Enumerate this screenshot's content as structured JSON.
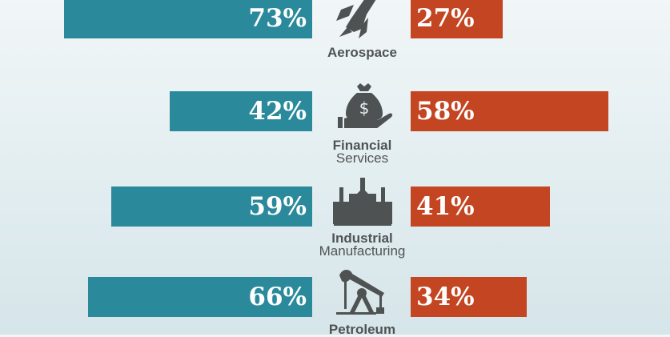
{
  "chart_data": {
    "type": "bar",
    "orientation": "horizontal-diverging",
    "categories": [
      {
        "line1": "Aerospace",
        "line2": ""
      },
      {
        "line1": "Financial",
        "line2": "Services"
      },
      {
        "line1": "Industrial",
        "line2": "Manufacturing"
      },
      {
        "line1": "Petroleum",
        "line2": ""
      }
    ],
    "icons": [
      "rocket-icon",
      "money-bag-hand-icon",
      "factory-icon",
      "oil-pump-icon"
    ],
    "series": [
      {
        "name": "left",
        "color": "#2a8a9b",
        "values": [
          73,
          42,
          59,
          66
        ],
        "labels": [
          "73%",
          "42%",
          "59%",
          "66%"
        ]
      },
      {
        "name": "right",
        "color": "#c34522",
        "values": [
          27,
          58,
          41,
          34
        ],
        "labels": [
          "27%",
          "58%",
          "41%",
          "34%"
        ]
      }
    ],
    "xlim": [
      0,
      100
    ]
  }
}
